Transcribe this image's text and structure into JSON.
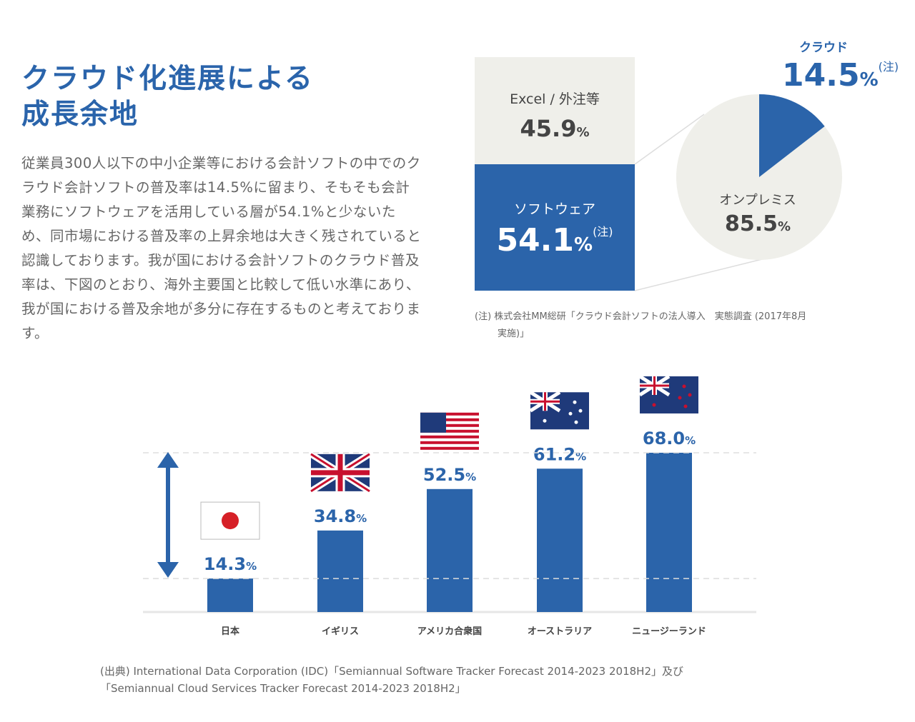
{
  "title": [
    "クラウド化進展による",
    "成長余地"
  ],
  "paragraph": "従業員300人以下の中小企業等における会計ソフトの中でのクラウド会計ソフトの普及率は14.5%に留まり、そもそも会計業務にソフトウェアを活用している層が54.1%と少ないため、同市場における普及率の上昇余地は大きく残されていると認識しております。我が国における会計ソフトのクラウド普及率は、下図のとおり、海外主要国と比較して低い水準にあり、我が国における普及余地が多分に存在するものと考えております。",
  "note": [
    "(注) 株式会社MM総研「クラウド会計ソフトの法人導入　実態調査 (2017年8月",
    "実施)」"
  ],
  "source": [
    "(出典) International Data Corporation (IDC)「Semiannual Software Tracker Forecast 2014-2023 2018H2」及び",
    "「Semiannual Cloud Services Tracker Forecast 2014-2023 2018H2」"
  ],
  "colors": {
    "blue": "#2b64aa",
    "grey": "#efefea"
  },
  "chart_data": [
    {
      "type": "bar",
      "stacked": true,
      "categories": [
        "Excel / 外注等",
        "ソフトウェア"
      ],
      "values": [
        45.9,
        54.1
      ],
      "labels": [
        "45.9",
        "54.1"
      ],
      "unit": "%",
      "note_mark": "(注)"
    },
    {
      "type": "pie",
      "title": "",
      "categories": [
        "クラウド",
        "オンプレミス"
      ],
      "values": [
        14.5,
        85.5
      ],
      "labels": [
        "14.5",
        "85.5"
      ],
      "unit": "%",
      "note_mark": "(注)"
    },
    {
      "type": "bar",
      "categories": [
        "日本",
        "イギリス",
        "アメリカ合衆国",
        "オーストラリア",
        "ニュージーランド"
      ],
      "values": [
        14.3,
        34.8,
        52.5,
        61.2,
        68.0
      ],
      "labels": [
        "14.3",
        "34.8",
        "52.5",
        "61.2",
        "68.0"
      ],
      "unit": "%",
      "flags": [
        "japan-flag",
        "uk-flag",
        "us-flag",
        "australia-flag",
        "new-zealand-flag"
      ],
      "ylim": [
        0,
        70
      ],
      "reference_lines": [
        14.3,
        68.0
      ]
    }
  ]
}
